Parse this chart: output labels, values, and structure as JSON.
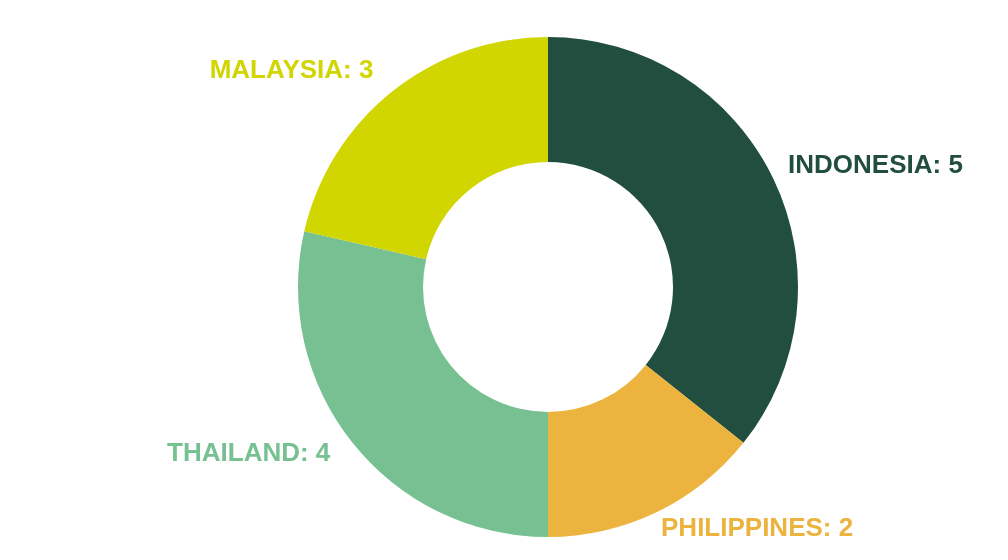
{
  "chart_data": {
    "type": "donut",
    "categories": [
      "INDONESIA: 5",
      "PHILIPPINES: 2",
      "THAILAND: 4",
      "MALAYSIA: 3"
    ],
    "values": [
      5,
      2,
      4,
      3
    ],
    "colors": [
      "#214e3f",
      "#ecb43f",
      "#77c092",
      "#d1d500"
    ],
    "legend": false
  }
}
